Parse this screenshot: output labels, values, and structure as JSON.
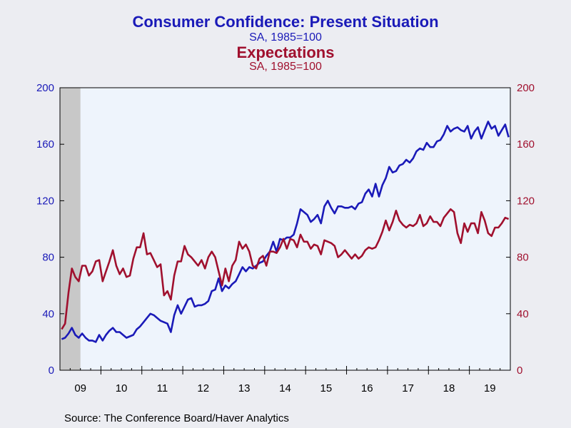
{
  "titles": {
    "title1": "Consumer Confidence: Present Situation",
    "subtitle1": "SA, 1985=100",
    "title2": "Expectations",
    "subtitle2": "SA, 1985=100"
  },
  "source": "Source:  The Conference Board/Haver Analytics",
  "colors": {
    "series1": "#1a1ab8",
    "series2": "#a0102e",
    "plot_bg": "#eef4fc",
    "recession": "#c8c8c8",
    "page_bg": "#ecedf2"
  },
  "chart_data": {
    "type": "line",
    "x_start": "2009-01",
    "frequency": "monthly",
    "x_tick_labels": [
      "09",
      "10",
      "11",
      "12",
      "13",
      "14",
      "15",
      "16",
      "17",
      "18",
      "19"
    ],
    "recession_shading": [
      "2009-01",
      "2009-06"
    ],
    "ylim_left": [
      0,
      200
    ],
    "ylim_right": [
      0,
      200
    ],
    "yticks_left": [
      "0",
      "40",
      "80",
      "120",
      "160",
      "200"
    ],
    "yticks_right": [
      "0",
      "40",
      "80",
      "120",
      "160",
      "200"
    ],
    "grid": false,
    "series": [
      {
        "name": "Consumer Confidence: Present Situation",
        "axis": "left",
        "values": [
          22,
          23,
          26,
          30,
          25,
          23,
          26,
          23,
          21,
          21,
          20,
          25,
          21,
          25,
          28,
          30,
          27,
          27,
          25,
          23,
          24,
          25,
          29,
          31,
          34,
          37,
          40,
          39,
          37,
          35,
          34,
          33,
          27,
          39,
          46,
          40,
          45,
          50,
          51,
          45,
          46,
          46,
          47,
          49,
          56,
          57,
          65,
          56,
          60,
          58,
          61,
          63,
          68,
          73,
          70,
          73,
          72,
          74,
          76,
          77,
          81,
          84,
          91,
          84,
          93,
          92,
          94,
          94,
          96,
          104,
          114,
          112,
          110,
          105,
          107,
          110,
          104,
          116,
          120,
          115,
          111,
          116,
          116,
          115,
          115,
          116,
          114,
          118,
          119,
          125,
          128,
          123,
          132,
          123,
          131,
          136,
          144,
          140,
          141,
          145,
          146,
          149,
          147,
          150,
          155,
          157,
          156,
          161,
          158,
          158,
          162,
          163,
          167,
          173,
          169,
          171,
          172,
          170,
          169,
          173,
          164,
          169,
          172,
          164,
          170,
          176,
          171,
          173,
          166,
          170,
          174,
          165
        ]
      },
      {
        "name": "Expectations",
        "axis": "right",
        "values": [
          29,
          33,
          55,
          72,
          66,
          63,
          74,
          74,
          67,
          70,
          77,
          78,
          63,
          70,
          77,
          85,
          74,
          68,
          72,
          66,
          67,
          79,
          87,
          87,
          97,
          82,
          83,
          78,
          73,
          75,
          53,
          56,
          50,
          67,
          77,
          77,
          88,
          82,
          80,
          77,
          74,
          78,
          72,
          80,
          84,
          80,
          70,
          60,
          72,
          63,
          74,
          78,
          91,
          86,
          89,
          84,
          74,
          72,
          79,
          81,
          74,
          84,
          84,
          83,
          87,
          93,
          86,
          93,
          92,
          87,
          96,
          91,
          91,
          86,
          89,
          88,
          82,
          92,
          91,
          90,
          88,
          80,
          82,
          85,
          82,
          79,
          82,
          79,
          81,
          85,
          87,
          86,
          87,
          92,
          98,
          106,
          99,
          105,
          113,
          106,
          103,
          101,
          103,
          102,
          104,
          110,
          102,
          104,
          109,
          105,
          105,
          102,
          108,
          111,
          114,
          112,
          97,
          90,
          104,
          98,
          104,
          104,
          97,
          112,
          106,
          97,
          95,
          101,
          101,
          104,
          108,
          107
        ]
      }
    ]
  }
}
